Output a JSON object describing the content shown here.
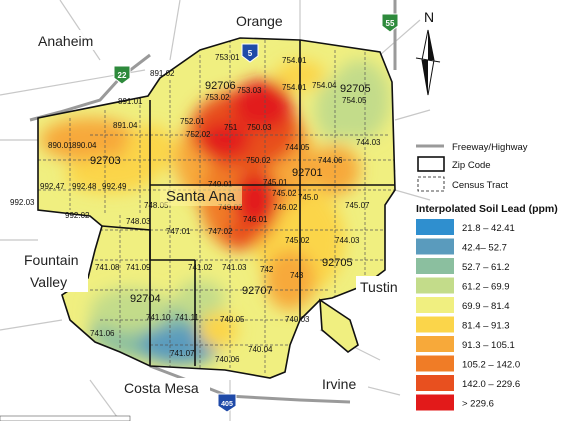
{
  "cities": {
    "anaheim": "Anaheim",
    "orange": "Orange",
    "santa_ana": "Santa Ana",
    "fountain": "Fountain",
    "valley": "Valley",
    "tustin": "Tustin",
    "costa_mesa": "Costa Mesa",
    "irvine": "Irvine"
  },
  "shields": {
    "i5": "5",
    "hwy22": "22",
    "hwy55": "55",
    "i405": "405"
  },
  "north_label": "N",
  "zips": [
    "92706",
    "92705",
    "92703",
    "92701",
    "92705",
    "92704",
    "92707"
  ],
  "tracts": [
    "753.01",
    "754.01",
    "754.04",
    "754.05",
    "891.02",
    "753.02",
    "891.01",
    "753.03",
    "754.01",
    "891.04",
    "751",
    "750.03",
    "890.01",
    "890.04",
    "752.01",
    "752.02",
    "750.02",
    "744.05",
    "744.06",
    "744.03",
    "992.47",
    "992.48",
    "992.49",
    "749.01",
    "745.01",
    "992.03",
    "745.02",
    "745.0",
    "748.05",
    "749.02",
    "746.02",
    "745.07",
    "992.02",
    "748.03",
    "746.01",
    "747.01",
    "747.02",
    "745.02",
    "744.03",
    "741.08",
    "741.09",
    "741.02",
    "741.03",
    "742",
    "743",
    "741.10",
    "741.11",
    "740.05",
    "741.06",
    "741.07",
    "740.03",
    "740.04",
    "740.06"
  ],
  "legend": {
    "freeway": "Freeway/Highway",
    "zip": "Zip Code",
    "tract": "Census Tract",
    "title": "Interpolated Soil Lead (ppm)",
    "classes": [
      {
        "range": "21.8 – 42.41",
        "color": "#2f8fcf"
      },
      {
        "range": "42.4– 52.7",
        "color": "#5a9bbd"
      },
      {
        "range": "52.7 – 61.2",
        "color": "#8bbf9f"
      },
      {
        "range": "61.2 – 69.9",
        "color": "#c3dc8a"
      },
      {
        "range": "69.9 – 81.4",
        "color": "#f0ef80"
      },
      {
        "range": "81.4 – 91.3",
        "color": "#fbd54a"
      },
      {
        "range": "91.3 – 105.1",
        "color": "#f7a93a"
      },
      {
        "range": "105.2 – 142.0",
        "color": "#f07c26"
      },
      {
        "range": "142.0 – 229.6",
        "color": "#e8501f"
      },
      {
        "range": "> 229.6",
        "color": "#e21a1a"
      }
    ]
  }
}
